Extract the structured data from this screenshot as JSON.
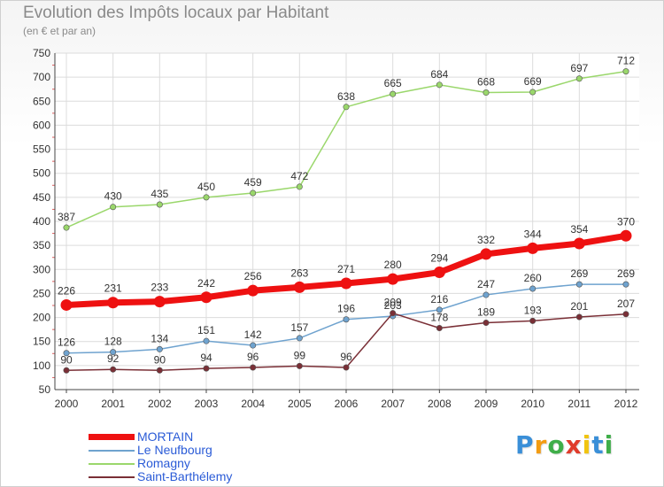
{
  "title": "Evolution des Impôts locaux par Habitant",
  "subtitle": "(en € et par an)",
  "brand": {
    "letters": [
      "P",
      "r",
      "o",
      "x",
      "i",
      "t",
      "i"
    ],
    "colors": [
      "#3a8fd8",
      "#f39c12",
      "#3fae49",
      "#e03b2b",
      "#f1c40f",
      "#3a8fd8",
      "#3fae49"
    ]
  },
  "chart_data": {
    "type": "line",
    "x": [
      "2000",
      "2001",
      "2002",
      "2003",
      "2004",
      "2005",
      "2006",
      "2007",
      "2008",
      "2009",
      "2010",
      "2011",
      "2012"
    ],
    "ylim": [
      50,
      750
    ],
    "yticks": [
      "50",
      "100",
      "150",
      "200",
      "250",
      "300",
      "350",
      "400",
      "450",
      "500",
      "550",
      "600",
      "650",
      "700",
      "750"
    ],
    "grid": true,
    "legend_position": "bottom-left",
    "series": [
      {
        "name": "MORTAIN",
        "color": "#ee1111",
        "highlight": true,
        "values": [
          226,
          231,
          233,
          242,
          256,
          263,
          271,
          280,
          294,
          332,
          344,
          354,
          370
        ]
      },
      {
        "name": "Le Neufbourg",
        "color": "#6fa3cf",
        "highlight": false,
        "values": [
          126,
          128,
          134,
          151,
          142,
          157,
          196,
          203,
          216,
          247,
          260,
          269,
          269
        ]
      },
      {
        "name": "Romagny",
        "color": "#9ad76b",
        "highlight": false,
        "values": [
          387,
          430,
          435,
          450,
          459,
          472,
          638,
          665,
          684,
          668,
          669,
          697,
          712
        ]
      },
      {
        "name": "Saint-Barthélemy",
        "color": "#7a2f36",
        "highlight": false,
        "values": [
          90,
          92,
          90,
          94,
          96,
          99,
          96,
          209,
          178,
          189,
          193,
          201,
          207
        ]
      }
    ]
  }
}
